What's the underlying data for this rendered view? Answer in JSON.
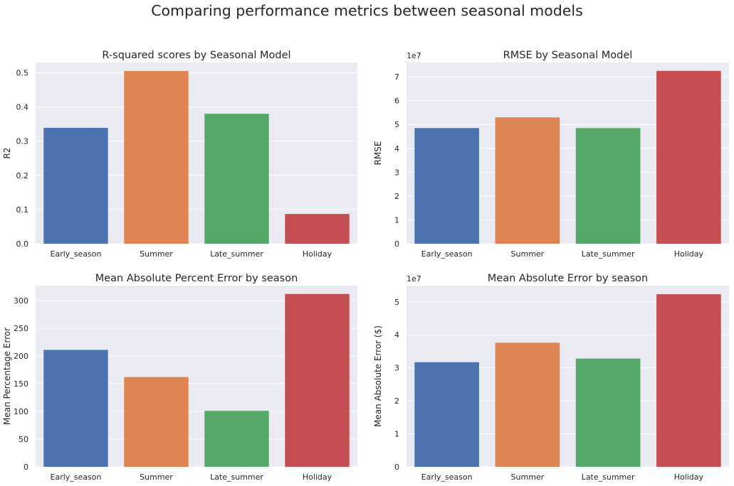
{
  "figure": {
    "title": "Comparing performance metrics between seasonal models"
  },
  "style": {
    "colors": [
      "#4c72b0",
      "#dd8452",
      "#55a868",
      "#c44e52"
    ],
    "plot_background": "#eaeaf2",
    "grid_color": "#ffffff",
    "text_color": "#262626"
  },
  "chart_data": [
    {
      "type": "bar",
      "title": "R-squared scores by Seasonal Model",
      "xlabel": "",
      "ylabel": "R2",
      "categories": [
        "Early_season",
        "Summer",
        "Late_summer",
        "Holiday"
      ],
      "values": [
        0.339,
        0.505,
        0.38,
        0.087
      ],
      "ylim": [
        0,
        0.53
      ],
      "yticks": [
        0.0,
        0.1,
        0.2,
        0.3,
        0.4,
        0.5
      ],
      "ytick_labels": [
        "0.0",
        "0.1",
        "0.2",
        "0.3",
        "0.4",
        "0.5"
      ],
      "offset_text": "",
      "grid": true
    },
    {
      "type": "bar",
      "title": "RMSE by Seasonal Model",
      "xlabel": "",
      "ylabel": "RMSE",
      "categories": [
        "Early_season",
        "Summer",
        "Late_summer",
        "Holiday"
      ],
      "values": [
        48500000,
        53000000,
        48500000,
        72500000
      ],
      "ylim": [
        0,
        76000000
      ],
      "yticks": [
        0,
        10000000,
        20000000,
        30000000,
        40000000,
        50000000,
        60000000,
        70000000
      ],
      "ytick_labels": [
        "0",
        "1",
        "2",
        "3",
        "4",
        "5",
        "6",
        "7"
      ],
      "offset_text": "1e7",
      "grid": true
    },
    {
      "type": "bar",
      "title": "Mean Absolute Percent Error by season",
      "xlabel": "",
      "ylabel": "Mean Percentage Error",
      "categories": [
        "Early_season",
        "Summer",
        "Late_summer",
        "Holiday"
      ],
      "values": [
        211,
        162,
        101,
        312
      ],
      "ylim": [
        0,
        327
      ],
      "yticks": [
        0,
        50,
        100,
        150,
        200,
        250,
        300
      ],
      "ytick_labels": [
        "0",
        "50",
        "100",
        "150",
        "200",
        "250",
        "300"
      ],
      "offset_text": "",
      "grid": true
    },
    {
      "type": "bar",
      "title": "Mean Absolute Error by season",
      "xlabel": "",
      "ylabel": "Mean Absolute Error ($)",
      "categories": [
        "Early_season",
        "Summer",
        "Late_summer",
        "Holiday"
      ],
      "values": [
        31700000,
        37600000,
        32800000,
        52300000
      ],
      "ylim": [
        0,
        54900000
      ],
      "yticks": [
        0,
        10000000,
        20000000,
        30000000,
        40000000,
        50000000
      ],
      "ytick_labels": [
        "0",
        "1",
        "2",
        "3",
        "4",
        "5"
      ],
      "offset_text": "1e7",
      "grid": true
    }
  ]
}
